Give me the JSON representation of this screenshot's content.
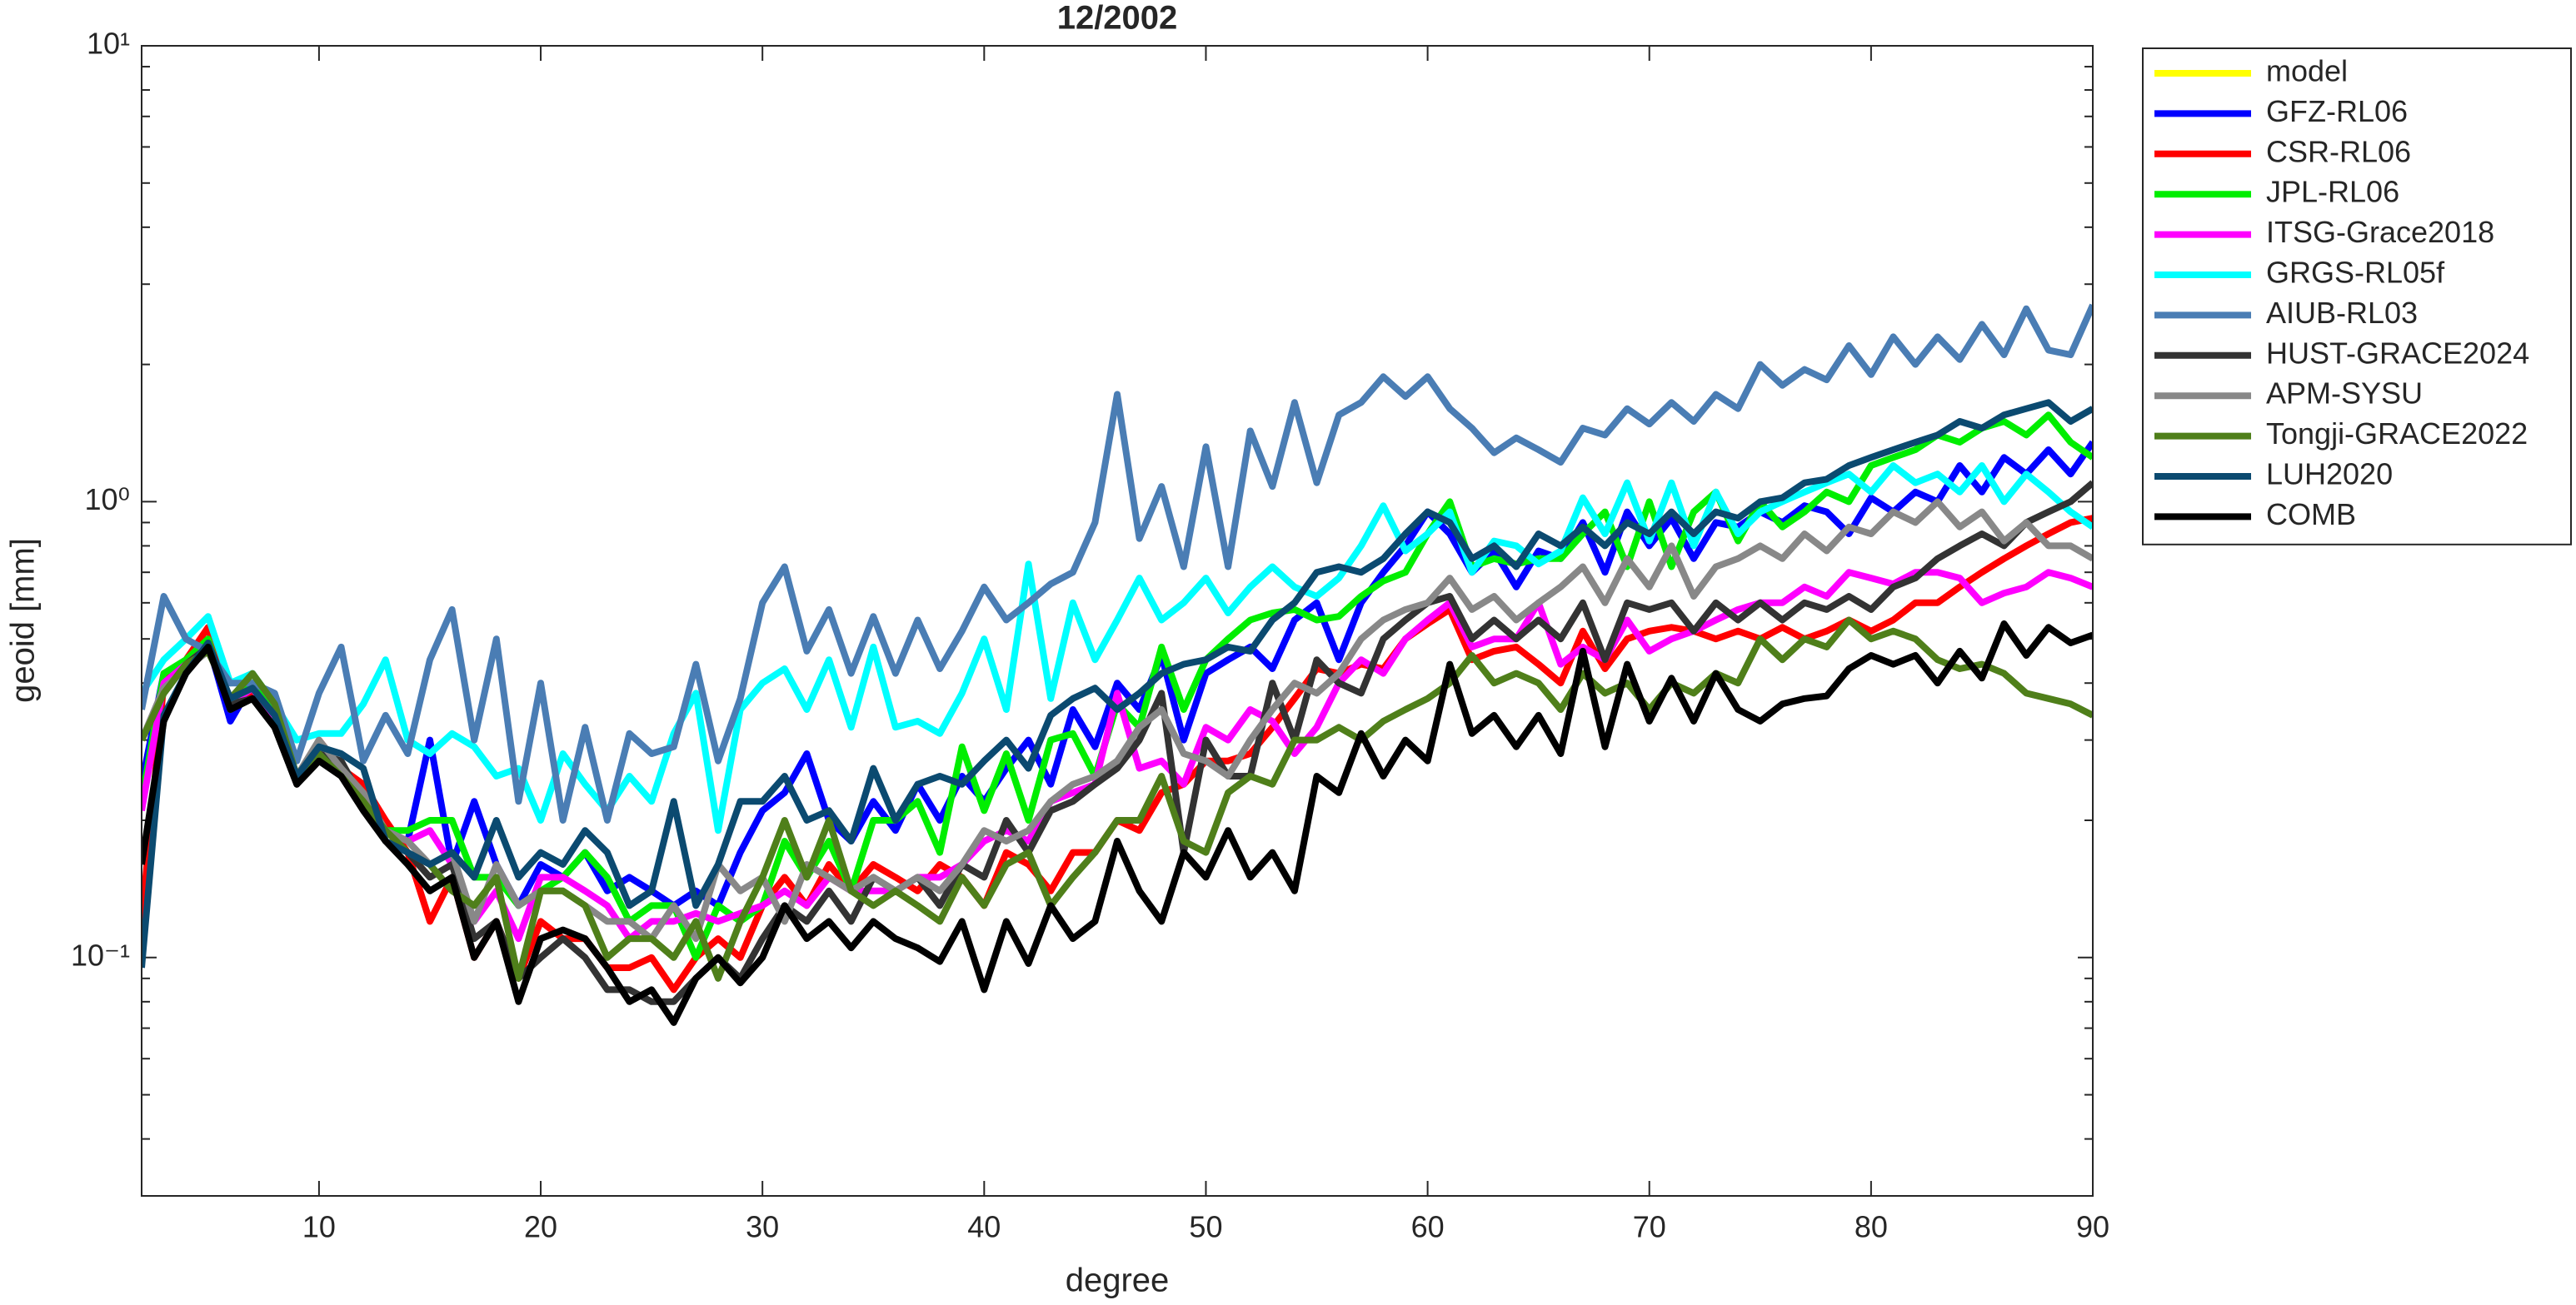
{
  "chart_data": {
    "type": "line",
    "title": "12/2002",
    "xlabel": "degree",
    "ylabel": "geoid [mm]",
    "log_y": true,
    "y_minor_ticks": true,
    "grid": false,
    "legend_position": "outside-right",
    "xlim": [
      2,
      90
    ],
    "xticks": [
      10,
      20,
      30,
      40,
      50,
      60,
      70,
      80,
      90
    ],
    "ylim": [
      0.03,
      10
    ],
    "yticks": [
      {
        "value": 0.1,
        "label": "10⁻¹"
      },
      {
        "value": 1,
        "label": "10⁰"
      },
      {
        "value": 10,
        "label": "10¹"
      }
    ],
    "x": [
      2,
      3,
      4,
      5,
      6,
      7,
      8,
      9,
      10,
      11,
      12,
      13,
      14,
      15,
      16,
      17,
      18,
      19,
      20,
      21,
      22,
      23,
      24,
      25,
      26,
      27,
      28,
      29,
      30,
      31,
      32,
      33,
      34,
      35,
      36,
      37,
      38,
      39,
      40,
      41,
      42,
      43,
      44,
      45,
      46,
      47,
      48,
      49,
      50,
      51,
      52,
      53,
      54,
      55,
      56,
      57,
      58,
      59,
      60,
      61,
      62,
      63,
      64,
      65,
      66,
      67,
      68,
      69,
      70,
      71,
      72,
      73,
      74,
      75,
      76,
      77,
      78,
      79,
      80,
      81,
      82,
      83,
      84,
      85,
      86,
      87,
      88,
      89,
      90
    ],
    "series": [
      {
        "name": "model",
        "color": "#ffff00",
        "values": [
          null,
          null,
          null,
          null,
          null,
          null,
          null,
          null,
          null,
          null,
          null,
          null,
          null,
          null,
          null,
          null,
          null,
          null,
          null,
          null,
          null,
          null,
          null,
          null,
          null,
          null,
          null,
          null,
          null,
          null,
          null,
          null,
          null,
          null,
          null,
          null,
          null,
          null,
          null,
          null,
          null,
          null,
          null,
          null,
          null,
          null,
          null,
          null,
          null,
          null,
          null,
          null,
          null,
          null,
          null,
          null,
          null,
          null,
          null,
          null,
          null,
          null,
          null,
          null,
          null,
          null,
          null,
          null,
          null,
          null,
          null,
          null,
          null,
          null,
          null,
          null,
          null,
          null,
          null,
          null,
          null,
          null,
          null,
          null,
          null,
          null,
          null,
          null,
          null
        ]
      },
      {
        "name": "GFZ-RL06",
        "color": "#0000ff",
        "values": [
          0.24,
          0.42,
          0.44,
          0.49,
          0.33,
          0.4,
          0.34,
          0.25,
          0.28,
          0.26,
          0.23,
          0.19,
          0.18,
          0.3,
          0.16,
          0.22,
          0.16,
          0.13,
          0.16,
          0.15,
          0.17,
          0.14,
          0.15,
          0.14,
          0.13,
          0.14,
          0.13,
          0.17,
          0.21,
          0.23,
          0.28,
          0.2,
          0.18,
          0.22,
          0.19,
          0.24,
          0.2,
          0.25,
          0.22,
          0.26,
          0.3,
          0.24,
          0.35,
          0.29,
          0.4,
          0.35,
          0.46,
          0.3,
          0.42,
          0.45,
          0.48,
          0.43,
          0.55,
          0.6,
          0.45,
          0.6,
          0.7,
          0.8,
          0.95,
          0.85,
          0.7,
          0.78,
          0.65,
          0.78,
          0.75,
          0.9,
          0.7,
          0.95,
          0.8,
          0.92,
          0.75,
          0.9,
          0.88,
          0.95,
          0.9,
          0.98,
          0.95,
          0.85,
          1.02,
          0.95,
          1.05,
          1.0,
          1.2,
          1.05,
          1.25,
          1.15,
          1.3,
          1.15,
          1.35
        ]
      },
      {
        "name": "CSR-RL06",
        "color": "#ff0000",
        "values": [
          0.12,
          0.4,
          0.45,
          0.53,
          0.35,
          0.38,
          0.33,
          0.24,
          0.3,
          0.26,
          0.24,
          0.2,
          0.17,
          0.12,
          0.15,
          0.1,
          0.12,
          0.09,
          0.12,
          0.11,
          0.11,
          0.095,
          0.095,
          0.1,
          0.085,
          0.1,
          0.11,
          0.1,
          0.13,
          0.15,
          0.13,
          0.16,
          0.14,
          0.16,
          0.15,
          0.14,
          0.16,
          0.15,
          0.13,
          0.17,
          0.16,
          0.14,
          0.17,
          0.17,
          0.2,
          0.19,
          0.23,
          0.24,
          0.27,
          0.27,
          0.28,
          0.32,
          0.37,
          0.43,
          0.42,
          0.44,
          0.43,
          0.5,
          0.54,
          0.58,
          0.45,
          0.47,
          0.48,
          0.44,
          0.4,
          0.52,
          0.43,
          0.5,
          0.52,
          0.53,
          0.52,
          0.5,
          0.52,
          0.5,
          0.53,
          0.5,
          0.52,
          0.55,
          0.52,
          0.55,
          0.6,
          0.6,
          0.65,
          0.7,
          0.75,
          0.8,
          0.85,
          0.9,
          0.92
        ]
      },
      {
        "name": "JPL-RL06",
        "color": "#00ee00",
        "values": [
          0.22,
          0.42,
          0.45,
          0.5,
          0.35,
          0.4,
          0.35,
          0.24,
          0.28,
          0.25,
          0.22,
          0.19,
          0.19,
          0.2,
          0.2,
          0.15,
          0.15,
          0.13,
          0.14,
          0.15,
          0.17,
          0.15,
          0.12,
          0.13,
          0.13,
          0.1,
          0.13,
          0.12,
          0.13,
          0.18,
          0.15,
          0.18,
          0.14,
          0.2,
          0.2,
          0.22,
          0.17,
          0.29,
          0.21,
          0.28,
          0.2,
          0.3,
          0.31,
          0.25,
          0.36,
          0.32,
          0.48,
          0.35,
          0.45,
          0.5,
          0.55,
          0.57,
          0.58,
          0.55,
          0.56,
          0.62,
          0.67,
          0.7,
          0.85,
          1.0,
          0.72,
          0.75,
          0.73,
          0.75,
          0.75,
          0.85,
          0.95,
          0.72,
          1.0,
          0.72,
          0.95,
          1.05,
          0.82,
          1.0,
          0.88,
          0.95,
          1.05,
          1.0,
          1.2,
          1.25,
          1.3,
          1.4,
          1.35,
          1.45,
          1.5,
          1.4,
          1.55,
          1.35,
          1.25
        ]
      },
      {
        "name": "ITSG-Grace2018",
        "color": "#ff00ff",
        "values": [
          0.21,
          0.4,
          0.44,
          0.48,
          0.36,
          0.39,
          0.33,
          0.24,
          0.28,
          0.25,
          0.22,
          0.19,
          0.18,
          0.19,
          0.16,
          0.12,
          0.14,
          0.11,
          0.15,
          0.15,
          0.14,
          0.13,
          0.11,
          0.12,
          0.12,
          0.125,
          0.12,
          0.125,
          0.13,
          0.14,
          0.13,
          0.15,
          0.14,
          0.14,
          0.14,
          0.15,
          0.15,
          0.16,
          0.18,
          0.19,
          0.18,
          0.22,
          0.23,
          0.24,
          0.38,
          0.26,
          0.27,
          0.24,
          0.32,
          0.3,
          0.35,
          0.33,
          0.28,
          0.32,
          0.4,
          0.45,
          0.42,
          0.5,
          0.55,
          0.6,
          0.48,
          0.5,
          0.5,
          0.6,
          0.44,
          0.48,
          0.45,
          0.55,
          0.47,
          0.5,
          0.52,
          0.55,
          0.58,
          0.6,
          0.6,
          0.65,
          0.62,
          0.7,
          0.68,
          0.66,
          0.7,
          0.7,
          0.68,
          0.6,
          0.63,
          0.65,
          0.7,
          0.68,
          0.65
        ]
      },
      {
        "name": "GRGS-RL05f",
        "color": "#00ffff",
        "values": [
          0.38,
          0.45,
          0.5,
          0.56,
          0.4,
          0.42,
          0.36,
          0.3,
          0.31,
          0.31,
          0.36,
          0.45,
          0.3,
          0.28,
          0.31,
          0.29,
          0.25,
          0.26,
          0.2,
          0.28,
          0.24,
          0.21,
          0.25,
          0.22,
          0.31,
          0.38,
          0.19,
          0.35,
          0.4,
          0.43,
          0.35,
          0.45,
          0.32,
          0.48,
          0.32,
          0.33,
          0.31,
          0.38,
          0.5,
          0.35,
          0.73,
          0.37,
          0.6,
          0.45,
          0.55,
          0.68,
          0.55,
          0.6,
          0.68,
          0.57,
          0.65,
          0.72,
          0.65,
          0.62,
          0.68,
          0.8,
          0.98,
          0.78,
          0.85,
          0.95,
          0.7,
          0.82,
          0.8,
          0.73,
          0.78,
          1.02,
          0.85,
          1.1,
          0.82,
          1.1,
          0.8,
          1.05,
          0.85,
          0.95,
          1.0,
          1.05,
          1.1,
          1.15,
          1.05,
          1.2,
          1.1,
          1.15,
          1.05,
          1.2,
          1.0,
          1.15,
          1.05,
          0.95,
          0.88
        ]
      },
      {
        "name": "AIUB-RL03",
        "color": "#4a7db4",
        "values": [
          0.35,
          0.62,
          0.5,
          0.47,
          0.4,
          0.4,
          0.38,
          0.27,
          0.38,
          0.48,
          0.27,
          0.34,
          0.28,
          0.45,
          0.58,
          0.3,
          0.5,
          0.22,
          0.4,
          0.2,
          0.32,
          0.2,
          0.31,
          0.28,
          0.29,
          0.44,
          0.27,
          0.37,
          0.6,
          0.72,
          0.47,
          0.58,
          0.42,
          0.56,
          0.42,
          0.55,
          0.43,
          0.52,
          0.65,
          0.55,
          0.6,
          0.66,
          0.7,
          0.9,
          1.72,
          0.83,
          1.08,
          0.72,
          1.32,
          0.72,
          1.43,
          1.08,
          1.65,
          1.1,
          1.55,
          1.65,
          1.88,
          1.7,
          1.88,
          1.6,
          1.45,
          1.28,
          1.38,
          1.3,
          1.22,
          1.45,
          1.4,
          1.6,
          1.48,
          1.65,
          1.5,
          1.72,
          1.6,
          2.0,
          1.8,
          1.95,
          1.85,
          2.2,
          1.9,
          2.3,
          2.0,
          2.3,
          2.05,
          2.45,
          2.1,
          2.65,
          2.15,
          2.1,
          2.7
        ]
      },
      {
        "name": "HUST-GRACE2024",
        "color": "#333333",
        "values": [
          0.3,
          0.38,
          0.44,
          0.48,
          0.36,
          0.37,
          0.32,
          0.24,
          0.28,
          0.27,
          0.22,
          0.18,
          0.17,
          0.15,
          0.16,
          0.11,
          0.12,
          0.09,
          0.1,
          0.11,
          0.1,
          0.085,
          0.085,
          0.08,
          0.08,
          0.09,
          0.1,
          0.09,
          0.11,
          0.13,
          0.12,
          0.14,
          0.12,
          0.15,
          0.14,
          0.15,
          0.13,
          0.16,
          0.15,
          0.2,
          0.17,
          0.21,
          0.22,
          0.24,
          0.26,
          0.3,
          0.38,
          0.17,
          0.3,
          0.25,
          0.25,
          0.4,
          0.3,
          0.45,
          0.4,
          0.38,
          0.5,
          0.55,
          0.6,
          0.62,
          0.5,
          0.55,
          0.5,
          0.55,
          0.5,
          0.6,
          0.45,
          0.6,
          0.58,
          0.6,
          0.52,
          0.6,
          0.55,
          0.6,
          0.55,
          0.6,
          0.58,
          0.62,
          0.58,
          0.65,
          0.68,
          0.75,
          0.8,
          0.85,
          0.8,
          0.9,
          0.95,
          1.0,
          1.1
        ]
      },
      {
        "name": "APM-SYSU",
        "color": "#888888",
        "values": [
          0.3,
          0.39,
          0.43,
          0.47,
          0.37,
          0.39,
          0.34,
          0.25,
          0.3,
          0.26,
          0.23,
          0.19,
          0.18,
          0.16,
          0.17,
          0.12,
          0.16,
          0.13,
          0.14,
          0.14,
          0.13,
          0.12,
          0.12,
          0.11,
          0.13,
          0.11,
          0.16,
          0.14,
          0.15,
          0.12,
          0.16,
          0.15,
          0.14,
          0.15,
          0.14,
          0.15,
          0.14,
          0.16,
          0.19,
          0.18,
          0.19,
          0.22,
          0.24,
          0.25,
          0.27,
          0.32,
          0.35,
          0.28,
          0.27,
          0.25,
          0.3,
          0.35,
          0.4,
          0.38,
          0.42,
          0.5,
          0.55,
          0.58,
          0.6,
          0.68,
          0.58,
          0.62,
          0.55,
          0.6,
          0.65,
          0.72,
          0.6,
          0.75,
          0.65,
          0.8,
          0.62,
          0.72,
          0.75,
          0.8,
          0.75,
          0.85,
          0.78,
          0.88,
          0.85,
          0.95,
          0.9,
          1.0,
          0.88,
          0.95,
          0.82,
          0.9,
          0.8,
          0.8,
          0.75
        ]
      },
      {
        "name": "Tongji-GRACE2022",
        "color": "#4f7f1a",
        "values": [
          0.3,
          0.38,
          0.44,
          0.47,
          0.37,
          0.42,
          0.36,
          0.25,
          0.28,
          0.25,
          0.22,
          0.19,
          0.17,
          0.16,
          0.14,
          0.13,
          0.15,
          0.09,
          0.14,
          0.14,
          0.13,
          0.1,
          0.11,
          0.11,
          0.1,
          0.12,
          0.09,
          0.12,
          0.15,
          0.2,
          0.15,
          0.2,
          0.14,
          0.13,
          0.14,
          0.13,
          0.12,
          0.15,
          0.13,
          0.16,
          0.17,
          0.13,
          0.15,
          0.17,
          0.2,
          0.2,
          0.25,
          0.18,
          0.17,
          0.23,
          0.25,
          0.24,
          0.3,
          0.3,
          0.32,
          0.3,
          0.33,
          0.35,
          0.37,
          0.4,
          0.46,
          0.4,
          0.42,
          0.4,
          0.35,
          0.42,
          0.38,
          0.4,
          0.35,
          0.4,
          0.38,
          0.42,
          0.4,
          0.5,
          0.45,
          0.5,
          0.48,
          0.55,
          0.5,
          0.52,
          0.5,
          0.45,
          0.43,
          0.44,
          0.42,
          0.38,
          0.37,
          0.36,
          0.34
        ]
      },
      {
        "name": "LUH2020",
        "color": "#0b4a70",
        "values": [
          0.095,
          0.34,
          0.42,
          0.49,
          0.37,
          0.39,
          0.34,
          0.25,
          0.29,
          0.28,
          0.26,
          0.18,
          0.17,
          0.16,
          0.17,
          0.15,
          0.2,
          0.15,
          0.17,
          0.16,
          0.19,
          0.17,
          0.13,
          0.14,
          0.22,
          0.13,
          0.16,
          0.22,
          0.22,
          0.25,
          0.2,
          0.21,
          0.18,
          0.26,
          0.2,
          0.24,
          0.25,
          0.24,
          0.27,
          0.3,
          0.26,
          0.34,
          0.37,
          0.39,
          0.35,
          0.38,
          0.42,
          0.44,
          0.45,
          0.48,
          0.47,
          0.55,
          0.6,
          0.7,
          0.72,
          0.7,
          0.75,
          0.85,
          0.95,
          0.9,
          0.75,
          0.8,
          0.72,
          0.85,
          0.8,
          0.88,
          0.8,
          0.9,
          0.85,
          0.95,
          0.85,
          0.95,
          0.92,
          1.0,
          1.02,
          1.1,
          1.12,
          1.2,
          1.25,
          1.3,
          1.35,
          1.4,
          1.5,
          1.45,
          1.55,
          1.6,
          1.65,
          1.5,
          1.6
        ]
      },
      {
        "name": "COMB",
        "color": "#000000",
        "values": [
          0.16,
          0.33,
          0.42,
          0.48,
          0.35,
          0.37,
          0.32,
          0.24,
          0.27,
          0.25,
          0.21,
          0.18,
          0.16,
          0.14,
          0.15,
          0.1,
          0.12,
          0.08,
          0.11,
          0.115,
          0.11,
          0.095,
          0.08,
          0.085,
          0.072,
          0.09,
          0.1,
          0.088,
          0.1,
          0.13,
          0.11,
          0.12,
          0.105,
          0.12,
          0.11,
          0.105,
          0.098,
          0.12,
          0.085,
          0.12,
          0.097,
          0.13,
          0.11,
          0.12,
          0.18,
          0.14,
          0.12,
          0.17,
          0.15,
          0.19,
          0.15,
          0.17,
          0.14,
          0.25,
          0.23,
          0.31,
          0.25,
          0.3,
          0.27,
          0.44,
          0.31,
          0.34,
          0.29,
          0.34,
          0.28,
          0.47,
          0.29,
          0.44,
          0.33,
          0.41,
          0.33,
          0.42,
          0.35,
          0.33,
          0.36,
          0.37,
          0.375,
          0.43,
          0.46,
          0.44,
          0.46,
          0.4,
          0.47,
          0.41,
          0.54,
          0.46,
          0.53,
          0.49,
          0.51
        ]
      }
    ]
  }
}
